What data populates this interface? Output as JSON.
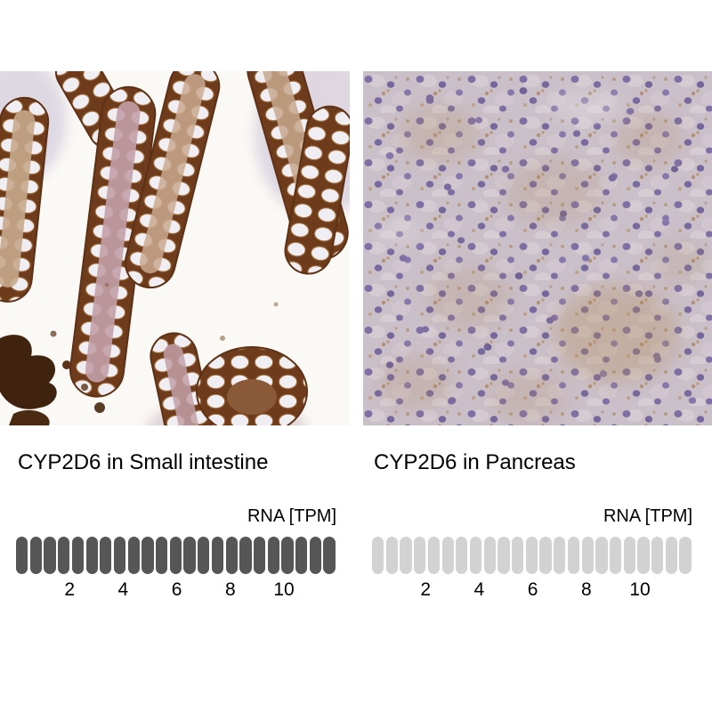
{
  "figure": {
    "background_color": "#ffffff"
  },
  "panels": [
    {
      "title": "CYP2D6 in Small intestine",
      "rna_label": "RNA [TPM]",
      "image_description": "Immunohistochemistry of small intestine: villi with strong brown CYP2D6 staining around pale epithelial cells on white background"
    },
    {
      "title": "CYP2D6 in Pancreas",
      "rna_label": "RNA [TPM]",
      "image_description": "Immunohistochemistry of pancreas: dense mauve tissue with purple nuclei and faint brown granular staining"
    }
  ],
  "chart_data": [
    {
      "type": "bar",
      "subtype": "segmented-pill-bar",
      "title": "CYP2D6 in Small intestine",
      "units_label": "RNA [TPM]",
      "axis_ticks": [
        2,
        4,
        6,
        8,
        10
      ],
      "axis_range": [
        0,
        11.5
      ],
      "tpm_per_segment": 0.5,
      "total_segments": 23,
      "filled_segments": 23,
      "approx_value_tpm": 11.5,
      "filled_color": "#565656",
      "empty_color": "#d2d2d2"
    },
    {
      "type": "bar",
      "subtype": "segmented-pill-bar",
      "title": "CYP2D6 in Pancreas",
      "units_label": "RNA [TPM]",
      "axis_ticks": [
        2,
        4,
        6,
        8,
        10
      ],
      "axis_range": [
        0,
        11.5
      ],
      "tpm_per_segment": 0.5,
      "total_segments": 23,
      "filled_segments": 0,
      "approx_value_tpm": 0,
      "filled_color": "#565656",
      "empty_color": "#d2d2d2"
    }
  ]
}
